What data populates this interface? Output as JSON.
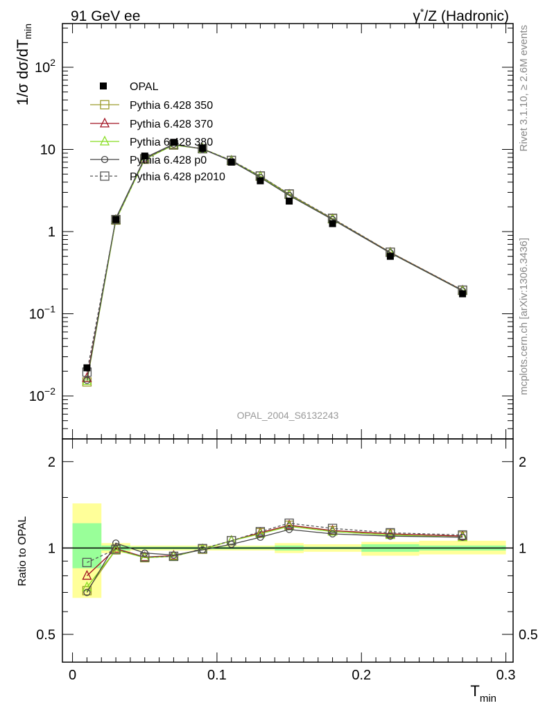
{
  "header": {
    "left_title": "91 GeV ee",
    "right_title_prefix": "γ",
    "right_title_sup": "*",
    "right_title_suffix": "/Z (Hadronic)"
  },
  "side_text": {
    "rivet": "Rivet 3.1.10, ≥ 2.6M events",
    "mcplots": "mcplots.cern.ch [arXiv:1306.3436]"
  },
  "analysis_label": "OPAL_2004_S6132243",
  "axes": {
    "y_main_label": "1/σ dσ/dT",
    "y_main_label_sub": "min",
    "y_ratio_label": "Ratio to OPAL",
    "x_label": "T",
    "x_label_sub": "min",
    "x_ticks": [
      "0",
      "0.1",
      "0.2",
      "0.3"
    ],
    "y_main_ticks": [
      {
        "base": "10",
        "exp": "−2",
        "value": 0.01
      },
      {
        "base": "10",
        "exp": "−1",
        "value": 0.1
      },
      {
        "base": "1",
        "exp": "",
        "value": 1
      },
      {
        "base": "10",
        "exp": "",
        "value": 10
      },
      {
        "base": "10",
        "exp": "2",
        "value": 100
      }
    ],
    "y_ratio_ticks_left": [
      "0.5",
      "1",
      "2"
    ],
    "y_ratio_ticks_right": [
      "0.5",
      "1",
      "2"
    ]
  },
  "chart_data": {
    "type": "line",
    "x": [
      0.01,
      0.03,
      0.05,
      0.07,
      0.09,
      0.11,
      0.13,
      0.15,
      0.18,
      0.22,
      0.27
    ],
    "xlim": [
      -0.007,
      0.305
    ],
    "main": {
      "yscale": "log",
      "ylim": [
        0.003,
        340
      ],
      "data": {
        "name": "OPAL",
        "values": [
          0.022,
          1.4,
          8.3,
          12.2,
          10.3,
          7.0,
          4.15,
          2.35,
          1.25,
          0.5,
          0.175
        ]
      },
      "series": [
        {
          "name": "Pythia 6.428 350",
          "color": "#9a9a2a",
          "marker": "square",
          "dash": false,
          "values": [
            0.0148,
            1.38,
            7.6,
            11.3,
            10.2,
            7.3,
            4.72,
            2.85,
            1.43,
            0.56,
            0.193
          ]
        },
        {
          "name": "Pythia 6.428 370",
          "color": "#a01020",
          "marker": "triangle",
          "dash": false,
          "values": [
            0.0165,
            1.39,
            7.7,
            11.4,
            10.2,
            7.3,
            4.7,
            2.82,
            1.42,
            0.555,
            0.192
          ]
        },
        {
          "name": "Pythia 6.428 380",
          "color": "#88dd22",
          "marker": "triangle",
          "dash": false,
          "values": [
            0.0152,
            1.38,
            7.6,
            11.3,
            10.2,
            7.3,
            4.68,
            2.8,
            1.41,
            0.55,
            0.19
          ]
        },
        {
          "name": "Pythia 6.428 p0",
          "color": "#444444",
          "marker": "circle",
          "dash": false,
          "values": [
            0.0155,
            1.45,
            7.9,
            11.6,
            10.1,
            7.2,
            4.55,
            2.75,
            1.4,
            0.55,
            0.19
          ]
        },
        {
          "name": "Pythia 6.428 p2010",
          "color": "#555555",
          "marker": "square",
          "dash": true,
          "values": [
            0.0195,
            1.4,
            7.7,
            11.4,
            10.2,
            7.35,
            4.75,
            2.87,
            1.45,
            0.56,
            0.194
          ]
        }
      ]
    },
    "ratio": {
      "yscale": "log",
      "ylim": [
        0.4,
        2.4
      ],
      "ref_line": 1,
      "bins": [
        {
          "x0": 0.0,
          "x1": 0.02,
          "stat": [
            0.85,
            1.22
          ],
          "total": [
            0.67,
            1.43
          ]
        },
        {
          "x0": 0.02,
          "x1": 0.04,
          "stat": [
            0.98,
            1.02
          ],
          "total": [
            0.96,
            1.04
          ]
        },
        {
          "x0": 0.04,
          "x1": 0.14,
          "stat": [
            0.99,
            1.01
          ],
          "total": [
            0.98,
            1.02
          ]
        },
        {
          "x0": 0.14,
          "x1": 0.16,
          "stat": [
            0.98,
            1.02
          ],
          "total": [
            0.96,
            1.04
          ]
        },
        {
          "x0": 0.16,
          "x1": 0.2,
          "stat": [
            0.99,
            1.01
          ],
          "total": [
            0.97,
            1.03
          ]
        },
        {
          "x0": 0.2,
          "x1": 0.24,
          "stat": [
            0.97,
            1.03
          ],
          "total": [
            0.94,
            1.05
          ]
        },
        {
          "x0": 0.24,
          "x1": 0.3,
          "stat": [
            0.98,
            1.02
          ],
          "total": [
            0.95,
            1.06
          ]
        }
      ],
      "series": [
        {
          "name": "Pythia 6.428 350",
          "values": [
            0.71,
            0.985,
            0.925,
            0.935,
            0.99,
            1.06,
            1.13,
            1.2,
            1.15,
            1.12,
            1.1
          ]
        },
        {
          "name": "Pythia 6.428 370",
          "values": [
            0.8,
            0.995,
            0.93,
            0.94,
            0.99,
            1.06,
            1.13,
            1.2,
            1.15,
            1.12,
            1.1
          ]
        },
        {
          "name": "Pythia 6.428 380",
          "values": [
            0.73,
            0.985,
            0.925,
            0.935,
            0.99,
            1.06,
            1.12,
            1.19,
            1.14,
            1.11,
            1.09
          ]
        },
        {
          "name": "Pythia 6.428 p0",
          "values": [
            0.7,
            1.04,
            0.96,
            0.945,
            0.985,
            1.03,
            1.09,
            1.16,
            1.12,
            1.1,
            1.09
          ]
        },
        {
          "name": "Pythia 6.428 p2010",
          "values": [
            0.89,
            0.99,
            0.93,
            0.935,
            0.995,
            1.06,
            1.14,
            1.22,
            1.17,
            1.13,
            1.11
          ]
        }
      ]
    },
    "legend_placement": "top-left"
  }
}
